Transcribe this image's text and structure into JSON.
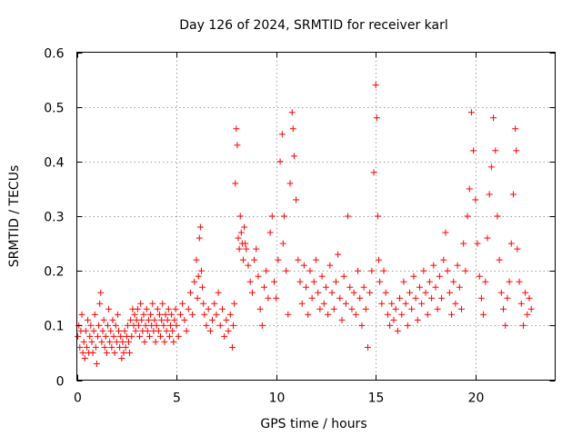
{
  "chart_data": {
    "type": "scatter",
    "title": "Day 126 of 2024, SRMTID for receiver karl",
    "xlabel": "GPS time / hours",
    "ylabel": "SRMTID / TECUs",
    "xlim": [
      0,
      24
    ],
    "ylim": [
      0,
      0.6
    ],
    "x_ticks": [
      0,
      5,
      10,
      15,
      20
    ],
    "x_tick_labels": [
      "0",
      "5",
      "10",
      "15",
      "20"
    ],
    "y_ticks": [
      0,
      0.1,
      0.2,
      0.3,
      0.4,
      0.5,
      0.6
    ],
    "y_tick_labels": [
      "0",
      "0.1",
      "0.2",
      "0.3",
      "0.4",
      "0.5",
      "0.6"
    ],
    "grid": true,
    "marker": "plus",
    "color": "#ff0000",
    "series": [
      {
        "name": "SRMTID",
        "points": [
          [
            0.05,
            0.08
          ],
          [
            0.1,
            0.1
          ],
          [
            0.15,
            0.06
          ],
          [
            0.2,
            0.09
          ],
          [
            0.25,
            0.12
          ],
          [
            0.3,
            0.05
          ],
          [
            0.35,
            0.07
          ],
          [
            0.4,
            0.04
          ],
          [
            0.45,
            0.09
          ],
          [
            0.5,
            0.06
          ],
          [
            0.55,
            0.11
          ],
          [
            0.6,
            0.05
          ],
          [
            0.65,
            0.08
          ],
          [
            0.7,
            0.1
          ],
          [
            0.75,
            0.07
          ],
          [
            0.8,
            0.05
          ],
          [
            0.85,
            0.09
          ],
          [
            0.9,
            0.12
          ],
          [
            0.95,
            0.06
          ],
          [
            1.0,
            0.03
          ],
          [
            1.05,
            0.08
          ],
          [
            1.1,
            0.1
          ],
          [
            1.15,
            0.14
          ],
          [
            1.2,
            0.16
          ],
          [
            1.25,
            0.07
          ],
          [
            1.3,
            0.09
          ],
          [
            1.35,
            0.11
          ],
          [
            1.4,
            0.06
          ],
          [
            1.45,
            0.08
          ],
          [
            1.5,
            0.05
          ],
          [
            1.55,
            0.1
          ],
          [
            1.6,
            0.13
          ],
          [
            1.65,
            0.07
          ],
          [
            1.7,
            0.09
          ],
          [
            1.75,
            0.06
          ],
          [
            1.8,
            0.11
          ],
          [
            1.85,
            0.08
          ],
          [
            1.9,
            0.05
          ],
          [
            1.95,
            0.1
          ],
          [
            2.0,
            0.07
          ],
          [
            2.05,
            0.12
          ],
          [
            2.1,
            0.09
          ],
          [
            2.15,
            0.06
          ],
          [
            2.2,
            0.08
          ],
          [
            2.25,
            0.04
          ],
          [
            2.3,
            0.07
          ],
          [
            2.35,
            0.05
          ],
          [
            2.4,
            0.09
          ],
          [
            2.45,
            0.06
          ],
          [
            2.5,
            0.08
          ],
          [
            2.55,
            0.1
          ],
          [
            2.6,
            0.07
          ],
          [
            2.65,
            0.05
          ],
          [
            2.7,
            0.11
          ],
          [
            2.75,
            0.08
          ],
          [
            2.8,
            0.13
          ],
          [
            2.85,
            0.1
          ],
          [
            2.9,
            0.12
          ],
          [
            2.95,
            0.09
          ],
          [
            3.0,
            0.11
          ],
          [
            3.05,
            0.13
          ],
          [
            3.1,
            0.1
          ],
          [
            3.15,
            0.08
          ],
          [
            3.2,
            0.14
          ],
          [
            3.25,
            0.11
          ],
          [
            3.3,
            0.09
          ],
          [
            3.35,
            0.12
          ],
          [
            3.4,
            0.07
          ],
          [
            3.45,
            0.1
          ],
          [
            3.5,
            0.13
          ],
          [
            3.55,
            0.09
          ],
          [
            3.6,
            0.11
          ],
          [
            3.65,
            0.08
          ],
          [
            3.7,
            0.12
          ],
          [
            3.75,
            0.1
          ],
          [
            3.8,
            0.14
          ],
          [
            3.85,
            0.09
          ],
          [
            3.9,
            0.11
          ],
          [
            3.95,
            0.07
          ],
          [
            4.0,
            0.1
          ],
          [
            4.05,
            0.13
          ],
          [
            4.1,
            0.09
          ],
          [
            4.15,
            0.12
          ],
          [
            4.2,
            0.08
          ],
          [
            4.25,
            0.11
          ],
          [
            4.3,
            0.14
          ],
          [
            4.35,
            0.1
          ],
          [
            4.4,
            0.07
          ],
          [
            4.45,
            0.12
          ],
          [
            4.5,
            0.09
          ],
          [
            4.55,
            0.11
          ],
          [
            4.6,
            0.13
          ],
          [
            4.65,
            0.08
          ],
          [
            4.7,
            0.1
          ],
          [
            4.75,
            0.12
          ],
          [
            4.8,
            0.09
          ],
          [
            4.85,
            0.07
          ],
          [
            4.9,
            0.11
          ],
          [
            4.95,
            0.13
          ],
          [
            5.0,
            0.1
          ],
          [
            5.1,
            0.08
          ],
          [
            5.2,
            0.12
          ],
          [
            5.3,
            0.14
          ],
          [
            5.4,
            0.11
          ],
          [
            5.5,
            0.09
          ],
          [
            5.6,
            0.13
          ],
          [
            5.7,
            0.16
          ],
          [
            5.8,
            0.12
          ],
          [
            5.9,
            0.18
          ],
          [
            6.0,
            0.22
          ],
          [
            6.05,
            0.15
          ],
          [
            6.1,
            0.19
          ],
          [
            6.15,
            0.26
          ],
          [
            6.2,
            0.28
          ],
          [
            6.25,
            0.2
          ],
          [
            6.3,
            0.17
          ],
          [
            6.35,
            0.14
          ],
          [
            6.4,
            0.12
          ],
          [
            6.5,
            0.1
          ],
          [
            6.6,
            0.13
          ],
          [
            6.7,
            0.09
          ],
          [
            6.8,
            0.11
          ],
          [
            6.9,
            0.14
          ],
          [
            7.0,
            0.12
          ],
          [
            7.1,
            0.16
          ],
          [
            7.2,
            0.1
          ],
          [
            7.3,
            0.13
          ],
          [
            7.4,
            0.08
          ],
          [
            7.5,
            0.11
          ],
          [
            7.6,
            0.09
          ],
          [
            7.7,
            0.12
          ],
          [
            7.8,
            0.06
          ],
          [
            7.85,
            0.1
          ],
          [
            7.9,
            0.14
          ],
          [
            7.95,
            0.36
          ],
          [
            8.0,
            0.46
          ],
          [
            8.05,
            0.43
          ],
          [
            8.1,
            0.26
          ],
          [
            8.15,
            0.24
          ],
          [
            8.2,
            0.3
          ],
          [
            8.25,
            0.27
          ],
          [
            8.3,
            0.25
          ],
          [
            8.35,
            0.22
          ],
          [
            8.4,
            0.28
          ],
          [
            8.45,
            0.25
          ],
          [
            8.5,
            0.24
          ],
          [
            8.6,
            0.21
          ],
          [
            8.7,
            0.18
          ],
          [
            8.8,
            0.16
          ],
          [
            8.9,
            0.22
          ],
          [
            9.0,
            0.24
          ],
          [
            9.1,
            0.19
          ],
          [
            9.2,
            0.13
          ],
          [
            9.3,
            0.1
          ],
          [
            9.4,
            0.17
          ],
          [
            9.5,
            0.2
          ],
          [
            9.6,
            0.15
          ],
          [
            9.7,
            0.27
          ],
          [
            9.8,
            0.3
          ],
          [
            9.9,
            0.18
          ],
          [
            10.0,
            0.15
          ],
          [
            10.1,
            0.22
          ],
          [
            10.2,
            0.4
          ],
          [
            10.3,
            0.45
          ],
          [
            10.35,
            0.25
          ],
          [
            10.4,
            0.3
          ],
          [
            10.5,
            0.2
          ],
          [
            10.6,
            0.12
          ],
          [
            10.7,
            0.36
          ],
          [
            10.8,
            0.49
          ],
          [
            10.85,
            0.46
          ],
          [
            10.9,
            0.41
          ],
          [
            11.0,
            0.33
          ],
          [
            11.1,
            0.22
          ],
          [
            11.2,
            0.18
          ],
          [
            11.3,
            0.14
          ],
          [
            11.4,
            0.21
          ],
          [
            11.5,
            0.17
          ],
          [
            11.6,
            0.12
          ],
          [
            11.7,
            0.2
          ],
          [
            11.8,
            0.15
          ],
          [
            11.9,
            0.18
          ],
          [
            12.0,
            0.22
          ],
          [
            12.1,
            0.16
          ],
          [
            12.2,
            0.13
          ],
          [
            12.3,
            0.19
          ],
          [
            12.4,
            0.14
          ],
          [
            12.5,
            0.17
          ],
          [
            12.6,
            0.12
          ],
          [
            12.7,
            0.21
          ],
          [
            12.8,
            0.16
          ],
          [
            12.9,
            0.13
          ],
          [
            13.0,
            0.18
          ],
          [
            13.1,
            0.23
          ],
          [
            13.2,
            0.15
          ],
          [
            13.3,
            0.11
          ],
          [
            13.4,
            0.19
          ],
          [
            13.5,
            0.14
          ],
          [
            13.6,
            0.3
          ],
          [
            13.7,
            0.17
          ],
          [
            13.8,
            0.13
          ],
          [
            13.9,
            0.16
          ],
          [
            14.0,
            0.12
          ],
          [
            14.1,
            0.2
          ],
          [
            14.2,
            0.15
          ],
          [
            14.3,
            0.1
          ],
          [
            14.4,
            0.17
          ],
          [
            14.5,
            0.13
          ],
          [
            14.6,
            0.06
          ],
          [
            14.7,
            0.16
          ],
          [
            14.8,
            0.2
          ],
          [
            14.9,
            0.38
          ],
          [
            15.0,
            0.54
          ],
          [
            15.05,
            0.48
          ],
          [
            15.1,
            0.3
          ],
          [
            15.15,
            0.22
          ],
          [
            15.2,
            0.18
          ],
          [
            15.3,
            0.14
          ],
          [
            15.4,
            0.2
          ],
          [
            15.5,
            0.16
          ],
          [
            15.6,
            0.12
          ],
          [
            15.7,
            0.1
          ],
          [
            15.8,
            0.14
          ],
          [
            15.9,
            0.11
          ],
          [
            16.0,
            0.13
          ],
          [
            16.1,
            0.09
          ],
          [
            16.2,
            0.15
          ],
          [
            16.3,
            0.12
          ],
          [
            16.4,
            0.18
          ],
          [
            16.5,
            0.14
          ],
          [
            16.6,
            0.1
          ],
          [
            16.7,
            0.16
          ],
          [
            16.8,
            0.13
          ],
          [
            16.9,
            0.19
          ],
          [
            17.0,
            0.15
          ],
          [
            17.1,
            0.11
          ],
          [
            17.2,
            0.17
          ],
          [
            17.3,
            0.14
          ],
          [
            17.4,
            0.2
          ],
          [
            17.5,
            0.16
          ],
          [
            17.6,
            0.12
          ],
          [
            17.7,
            0.18
          ],
          [
            17.8,
            0.15
          ],
          [
            17.9,
            0.21
          ],
          [
            18.0,
            0.17
          ],
          [
            18.1,
            0.13
          ],
          [
            18.2,
            0.19
          ],
          [
            18.3,
            0.15
          ],
          [
            18.4,
            0.22
          ],
          [
            18.5,
            0.27
          ],
          [
            18.6,
            0.2
          ],
          [
            18.7,
            0.16
          ],
          [
            18.8,
            0.12
          ],
          [
            18.9,
            0.18
          ],
          [
            19.0,
            0.14
          ],
          [
            19.1,
            0.21
          ],
          [
            19.2,
            0.17
          ],
          [
            19.3,
            0.13
          ],
          [
            19.4,
            0.25
          ],
          [
            19.5,
            0.2
          ],
          [
            19.6,
            0.3
          ],
          [
            19.7,
            0.35
          ],
          [
            19.8,
            0.49
          ],
          [
            19.9,
            0.42
          ],
          [
            20.0,
            0.33
          ],
          [
            20.1,
            0.25
          ],
          [
            20.2,
            0.19
          ],
          [
            20.3,
            0.15
          ],
          [
            20.4,
            0.12
          ],
          [
            20.5,
            0.18
          ],
          [
            20.6,
            0.26
          ],
          [
            20.7,
            0.34
          ],
          [
            20.8,
            0.39
          ],
          [
            20.9,
            0.48
          ],
          [
            21.0,
            0.42
          ],
          [
            21.1,
            0.3
          ],
          [
            21.2,
            0.22
          ],
          [
            21.3,
            0.16
          ],
          [
            21.4,
            0.13
          ],
          [
            21.5,
            0.1
          ],
          [
            21.6,
            0.15
          ],
          [
            21.7,
            0.18
          ],
          [
            21.8,
            0.25
          ],
          [
            21.9,
            0.34
          ],
          [
            22.0,
            0.46
          ],
          [
            22.05,
            0.42
          ],
          [
            22.1,
            0.24
          ],
          [
            22.2,
            0.18
          ],
          [
            22.3,
            0.14
          ],
          [
            22.4,
            0.1
          ],
          [
            22.5,
            0.16
          ],
          [
            22.6,
            0.12
          ],
          [
            22.7,
            0.15
          ],
          [
            22.8,
            0.13
          ]
        ]
      }
    ]
  }
}
